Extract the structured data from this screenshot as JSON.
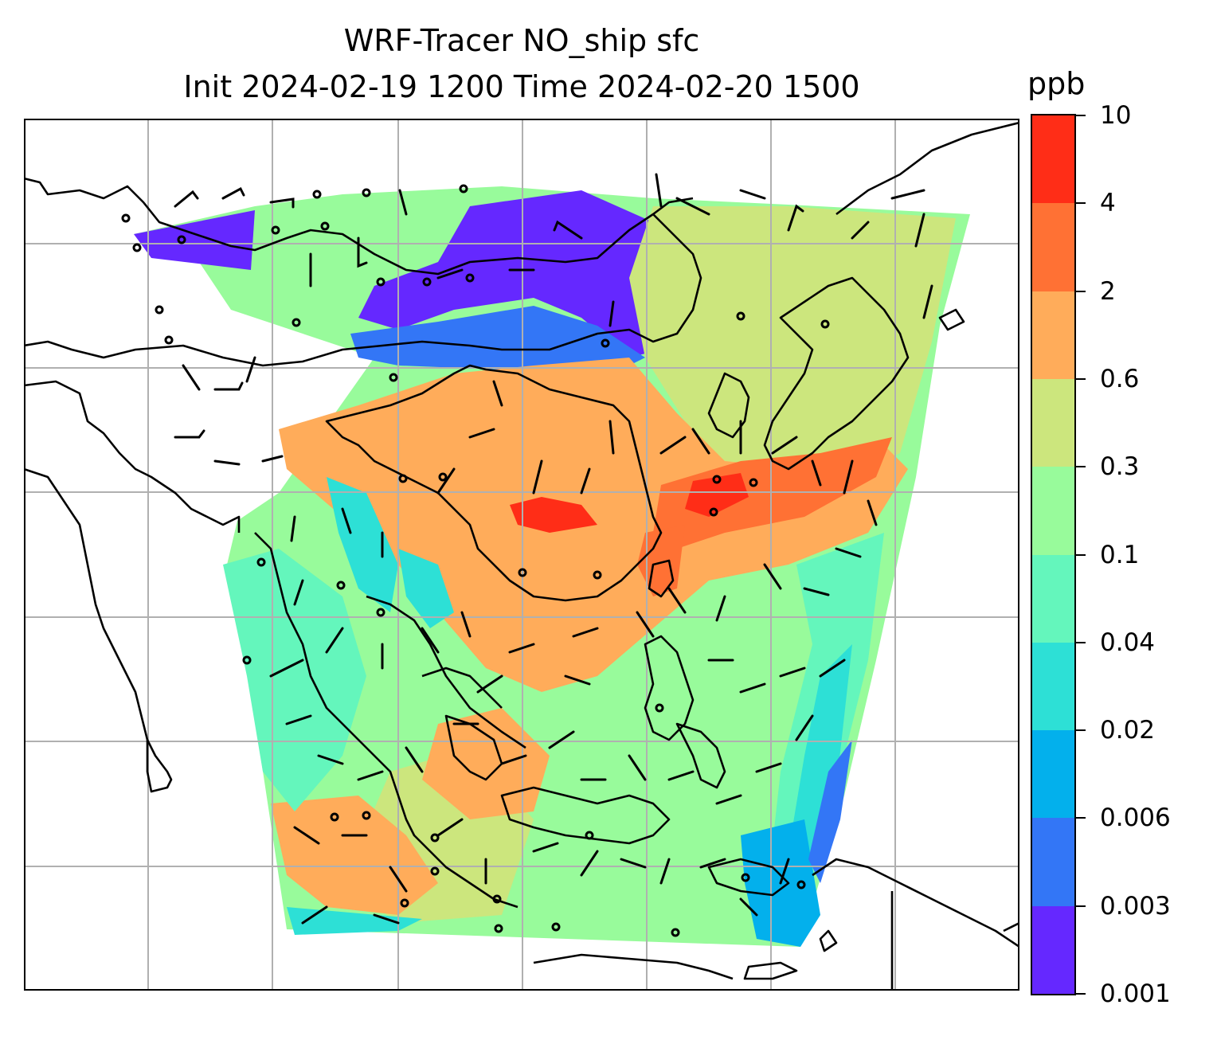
{
  "title_line1": "WRF-Tracer NO_ship sfc",
  "title_line2": "Init 2024-02-19 1200 Time 2024-02-20 1500",
  "colorbar": {
    "unit": "ppb",
    "levels": [
      "0.001",
      "0.003",
      "0.006",
      "0.02",
      "0.04",
      "0.1",
      "0.3",
      "0.6",
      "2",
      "4",
      "10"
    ],
    "colors": [
      "#6528ff",
      "#3376f6",
      "#03b0ec",
      "#2de0d6",
      "#64f6bc",
      "#98fb9b",
      "#cce67d",
      "#ffac5a",
      "#ff7134",
      "#ff2d17"
    ]
  },
  "map": {
    "gridlines": true,
    "coastlines": true,
    "field": "NO_ship surface tracer concentration",
    "overlay": "wind barbs"
  }
}
